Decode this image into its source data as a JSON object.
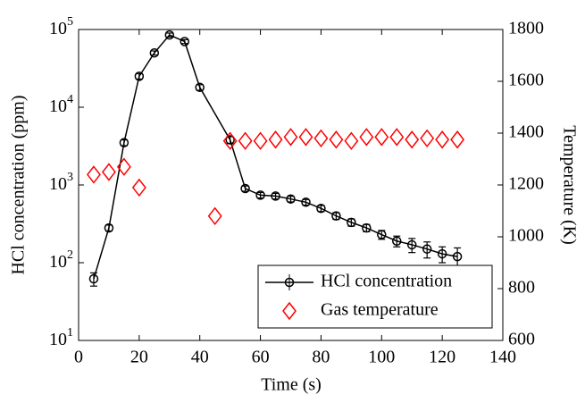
{
  "chart_data": {
    "type": "line",
    "xlabel": "Time (s)",
    "ylabel": "HCl concentration (ppm)",
    "y2label": "Temperature (K)",
    "xlim": [
      0,
      140
    ],
    "xticks": [
      0,
      20,
      40,
      60,
      80,
      100,
      120,
      140
    ],
    "ylim": [
      10,
      100000
    ],
    "yscale": "log",
    "yticks": [
      {
        "value": 10,
        "label": "10^1"
      },
      {
        "value": 100,
        "label": "10^2"
      },
      {
        "value": 1000,
        "label": "10^3"
      },
      {
        "value": 10000,
        "label": "10^4"
      },
      {
        "value": 100000,
        "label": "10^5"
      }
    ],
    "y2lim": [
      600,
      1800
    ],
    "y2ticks": [
      600,
      800,
      1000,
      1200,
      1400,
      1600,
      1800
    ],
    "legend": "lower right",
    "series": [
      {
        "name": "HCl concentration",
        "color": "#000000",
        "marker": "circle",
        "line": true,
        "x": [
          5,
          10,
          15,
          20,
          25,
          30,
          35,
          40,
          50,
          55,
          60,
          65,
          70,
          75,
          80,
          85,
          90,
          95,
          100,
          105,
          110,
          115,
          120,
          125
        ],
        "values": [
          62,
          280,
          3500,
          25000,
          50000,
          85000,
          70000,
          18000,
          3800,
          900,
          740,
          720,
          660,
          600,
          500,
          400,
          330,
          280,
          230,
          190,
          170,
          150,
          130,
          120
        ],
        "errors": [
          12,
          25,
          300,
          2000,
          3000,
          5000,
          4000,
          1500,
          400,
          70,
          60,
          60,
          55,
          50,
          45,
          40,
          35,
          30,
          30,
          30,
          35,
          35,
          30,
          35
        ]
      },
      {
        "name": "Gas temperature",
        "color": "#ff0000",
        "marker": "diamond",
        "line": false,
        "axis": "y2",
        "x": [
          5,
          10,
          15,
          20,
          45,
          50,
          55,
          60,
          65,
          70,
          75,
          80,
          85,
          90,
          95,
          100,
          105,
          110,
          115,
          120,
          125
        ],
        "values": [
          1240,
          1250,
          1270,
          1190,
          1080,
          1370,
          1370,
          1370,
          1375,
          1385,
          1385,
          1380,
          1375,
          1370,
          1385,
          1385,
          1385,
          1375,
          1380,
          1375,
          1375
        ]
      }
    ]
  }
}
